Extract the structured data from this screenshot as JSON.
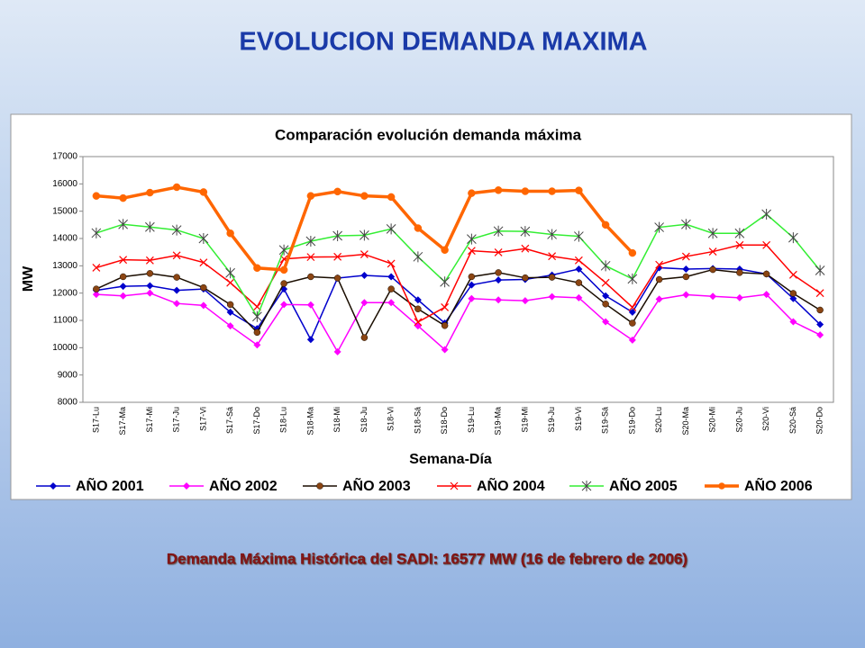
{
  "slide_title": "EVOLUCION DEMANDA MAXIMA",
  "footnote": "Demanda Máxima Histórica del SADI: 16577 MW  (16 de febrero de 2006)",
  "chart_data": {
    "type": "line",
    "title": "Comparación evolución demanda máxima",
    "x_label": "Semana-Día",
    "y_label": "MW",
    "categories": [
      "S17-Lu",
      "S17-Ma",
      "S17-Mi",
      "S17-Ju",
      "S17-Vi",
      "S17-Sá",
      "S17-Do",
      "S18-Lu",
      "S18-Ma",
      "S18-Mi",
      "S18-Ju",
      "S18-Vi",
      "S18-Sá",
      "S18-Do",
      "S19-Lu",
      "S19-Ma",
      "S19-Mi",
      "S19-Ju",
      "S19-Vi",
      "S19-Sá",
      "S19-Do",
      "S20-Lu",
      "S20-Ma",
      "S20-Mi",
      "S20-Ju",
      "S20-Vi",
      "S20-Sá",
      "S20-Do"
    ],
    "ylim": [
      8000,
      17000
    ],
    "yticks": [
      8000,
      9000,
      10000,
      11000,
      12000,
      13000,
      14000,
      15000,
      16000,
      17000
    ],
    "grid": false,
    "legend": "bottom",
    "series": [
      {
        "name": "AÑO 2001",
        "color": "#0000cc",
        "marker": "diamond",
        "values": [
          12100,
          12250,
          12270,
          12100,
          12150,
          11300,
          10700,
          12150,
          10300,
          12550,
          12650,
          12600,
          11750,
          10900,
          12300,
          12480,
          12500,
          12660,
          12880,
          11900,
          11300,
          12930,
          12880,
          12900,
          12880,
          12700,
          11800,
          10850
        ]
      },
      {
        "name": "AÑO 2002",
        "color": "#ff00ff",
        "marker": "diamond",
        "values": [
          11950,
          11900,
          12000,
          11620,
          11550,
          10800,
          10100,
          11580,
          11570,
          9850,
          11650,
          11650,
          10800,
          9930,
          11800,
          11750,
          11720,
          11870,
          11830,
          10950,
          10280,
          11780,
          11940,
          11880,
          11830,
          11950,
          10950,
          10470
        ]
      },
      {
        "name": "AÑO 2003",
        "color": "#1a0d00",
        "marker": "circle",
        "values": [
          12150,
          12600,
          12720,
          12580,
          12200,
          11580,
          10560,
          12350,
          12600,
          12550,
          10370,
          12150,
          11420,
          10810,
          12600,
          12750,
          12560,
          12580,
          12380,
          11600,
          10900,
          12500,
          12600,
          12860,
          12750,
          12700,
          11990,
          11380
        ]
      },
      {
        "name": "AÑO 2004",
        "color": "#ff0000",
        "marker": "x",
        "values": [
          12930,
          13220,
          13200,
          13380,
          13120,
          12380,
          11500,
          13250,
          13320,
          13330,
          13420,
          13080,
          10940,
          11480,
          13550,
          13490,
          13630,
          13350,
          13200,
          12380,
          11480,
          13040,
          13340,
          13520,
          13760,
          13760,
          12670,
          12000
        ]
      },
      {
        "name": "AÑO 2005",
        "color": "#33ee33",
        "marker": "star",
        "values": [
          14200,
          14520,
          14420,
          14310,
          14000,
          12740,
          11140,
          13580,
          13900,
          14100,
          14120,
          14350,
          13330,
          12410,
          13980,
          14270,
          14260,
          14150,
          14080,
          13000,
          12520,
          14410,
          14520,
          14190,
          14190,
          14890,
          14030,
          12830
        ]
      },
      {
        "name": "AÑO 2006",
        "color": "#ff6600",
        "marker": "circle",
        "values": [
          15560,
          15480,
          15680,
          15880,
          15700,
          14190,
          12920,
          12850,
          15560,
          15720,
          15560,
          15520,
          14380,
          13580,
          15660,
          15770,
          15730,
          15730,
          15760,
          14500,
          13470,
          null,
          null,
          null,
          null,
          null,
          null,
          null
        ]
      }
    ]
  }
}
